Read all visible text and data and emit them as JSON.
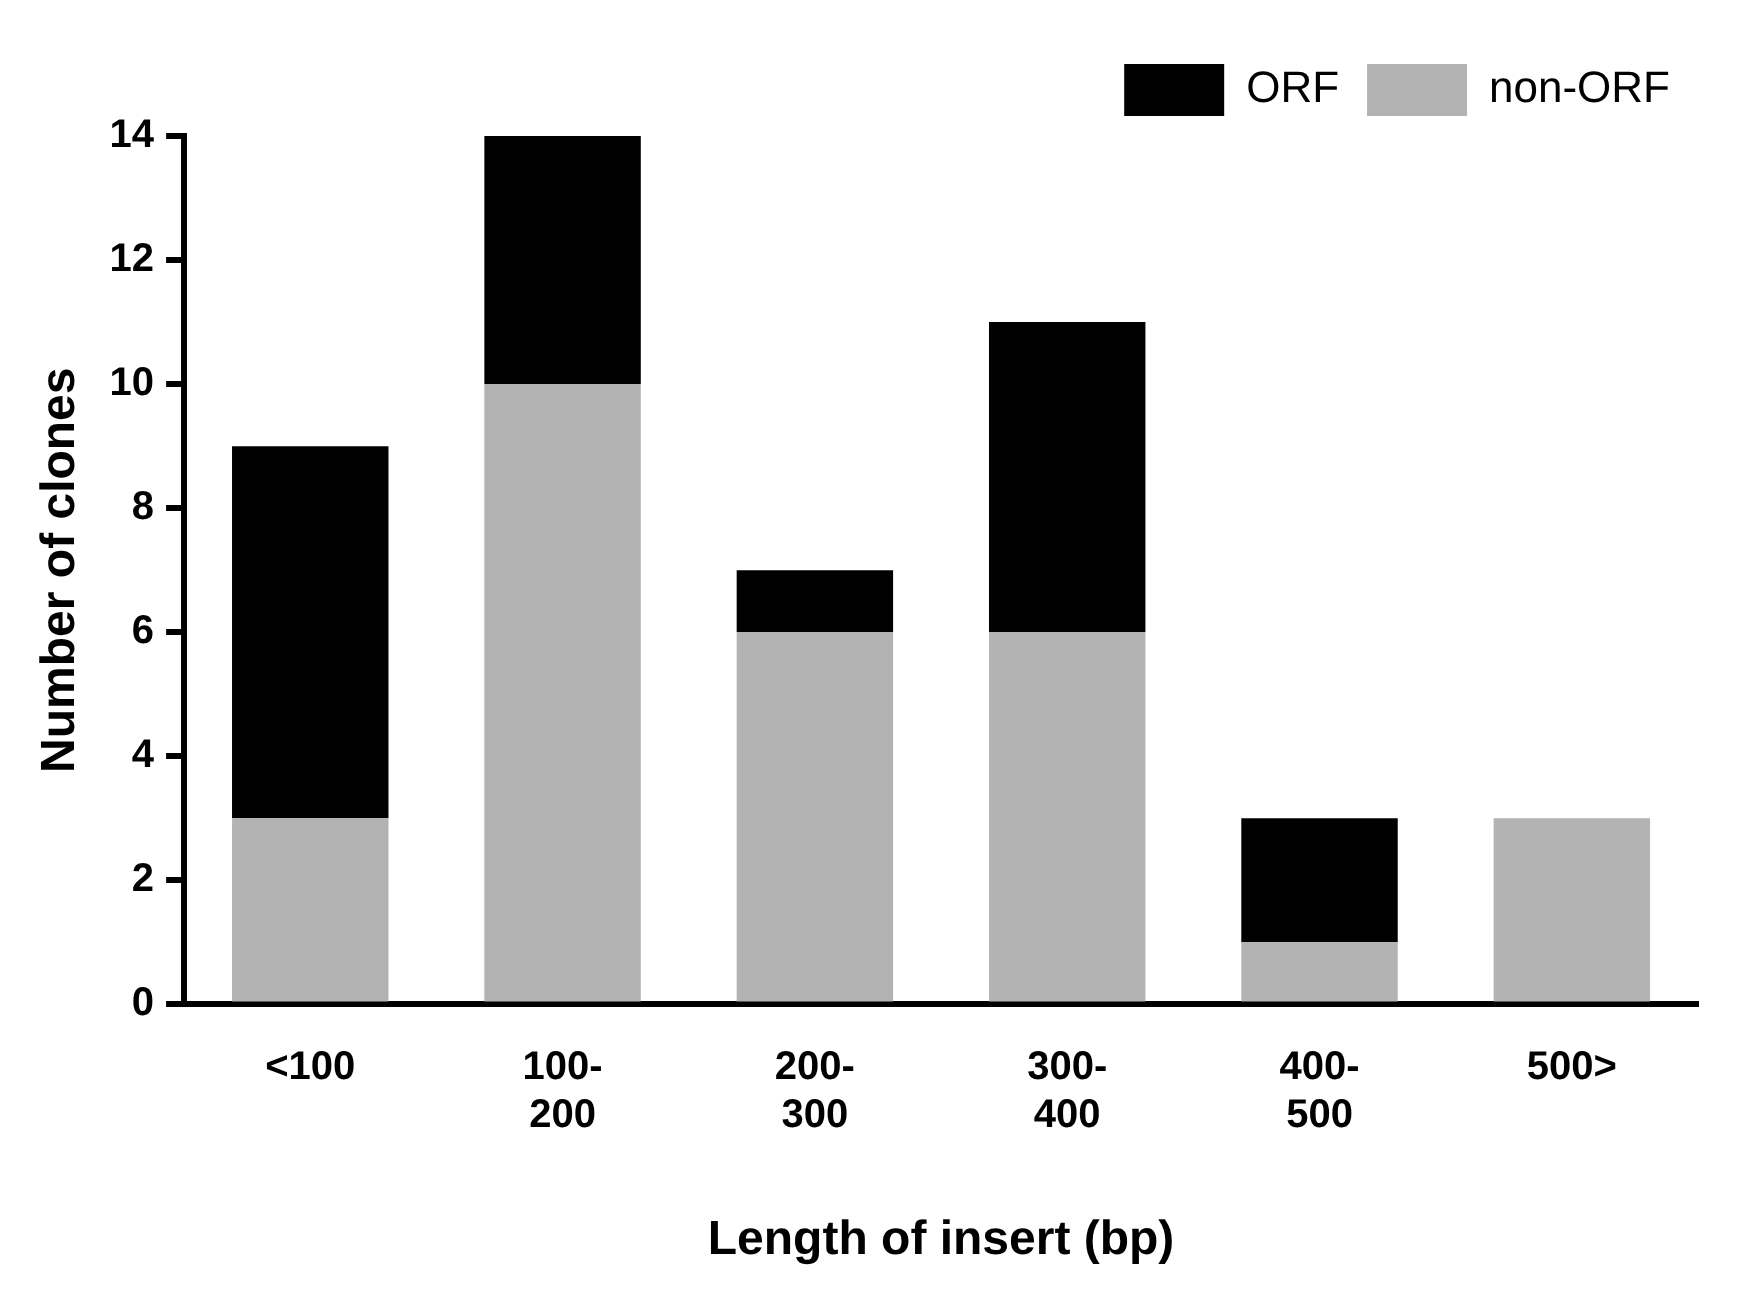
{
  "chart_data": {
    "type": "bar",
    "stacked": true,
    "xlabel": "Length of insert (bp)",
    "ylabel": "Number of clones",
    "categories": [
      "<100",
      "100-200",
      "200-300",
      "300-400",
      "400-500",
      "500>"
    ],
    "series": [
      {
        "name": "non-ORF",
        "color": "#b3b3b3",
        "values": [
          3,
          10,
          6,
          6,
          1,
          3
        ]
      },
      {
        "name": "ORF",
        "color": "#000000",
        "values": [
          6,
          4,
          1,
          5,
          2,
          0
        ]
      }
    ],
    "ylim": [
      0,
      14
    ],
    "yticks": [
      0,
      2,
      4,
      6,
      8,
      10,
      12,
      14
    ],
    "grid": false,
    "legend": "top right"
  }
}
